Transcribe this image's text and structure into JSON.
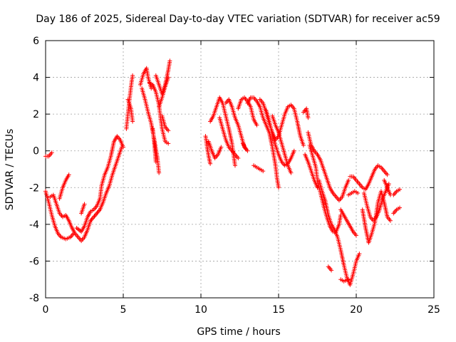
{
  "chart_data": {
    "type": "scatter",
    "title": "Day 186 of 2025, Sidereal Day-to-day VTEC variation (SDTVAR) for receiver ac59",
    "xlabel": "GPS time / hours",
    "ylabel": "SDTVAR / TECUs",
    "xlim": [
      0,
      25
    ],
    "ylim": [
      -8,
      6
    ],
    "xticks": [
      "0",
      "5",
      "10",
      "15",
      "20",
      "25"
    ],
    "yticks": [
      "-8",
      "-6",
      "-4",
      "-2",
      "0",
      "2",
      "4",
      "6"
    ],
    "xtick_values": [
      0,
      5,
      10,
      15,
      20,
      25
    ],
    "ytick_values": [
      -8,
      -6,
      -4,
      -2,
      0,
      2,
      4,
      6
    ],
    "grid": true,
    "marker": "+",
    "marker_color": "#ff0000",
    "tracks": [
      [
        [
          0.0,
          -0.3
        ],
        [
          0.2,
          -0.3
        ],
        [
          0.4,
          -0.1
        ]
      ],
      [
        [
          0.0,
          -2.2
        ],
        [
          0.2,
          -2.8
        ],
        [
          0.4,
          -3.5
        ],
        [
          0.6,
          -4.1
        ],
        [
          0.8,
          -4.5
        ],
        [
          1.0,
          -4.7
        ],
        [
          1.3,
          -4.8
        ],
        [
          1.6,
          -4.7
        ],
        [
          1.8,
          -4.5
        ]
      ],
      [
        [
          0.3,
          -2.5
        ],
        [
          0.5,
          -2.4
        ],
        [
          0.7,
          -2.9
        ],
        [
          0.9,
          -3.4
        ],
        [
          1.1,
          -3.6
        ],
        [
          1.3,
          -3.5
        ],
        [
          1.5,
          -3.8
        ],
        [
          1.7,
          -4.2
        ],
        [
          1.9,
          -4.5
        ],
        [
          2.1,
          -4.7
        ],
        [
          2.3,
          -4.9
        ],
        [
          2.5,
          -4.7
        ],
        [
          2.7,
          -4.3
        ],
        [
          2.9,
          -3.8
        ],
        [
          3.2,
          -3.5
        ],
        [
          3.5,
          -3.2
        ],
        [
          3.7,
          -2.8
        ],
        [
          3.9,
          -2.3
        ],
        [
          4.1,
          -1.9
        ],
        [
          4.3,
          -1.3
        ],
        [
          4.5,
          -0.8
        ],
        [
          4.7,
          -0.3
        ],
        [
          4.9,
          0.2
        ]
      ],
      [
        [
          0.9,
          -2.6
        ],
        [
          1.1,
          -2.0
        ],
        [
          1.3,
          -1.6
        ],
        [
          1.5,
          -1.3
        ]
      ],
      [
        [
          2.0,
          -4.2
        ],
        [
          2.3,
          -4.4
        ],
        [
          2.5,
          -4.1
        ],
        [
          2.7,
          -3.6
        ],
        [
          2.9,
          -3.3
        ],
        [
          3.1,
          -3.2
        ],
        [
          3.3,
          -3.0
        ],
        [
          3.5,
          -2.6
        ],
        [
          3.6,
          -1.9
        ],
        [
          3.8,
          -1.3
        ],
        [
          4.0,
          -0.9
        ],
        [
          4.2,
          -0.3
        ],
        [
          4.4,
          0.5
        ],
        [
          4.6,
          0.8
        ],
        [
          4.8,
          0.6
        ],
        [
          5.0,
          0.2
        ]
      ],
      [
        [
          2.3,
          -3.4
        ],
        [
          2.5,
          -2.9
        ]
      ],
      [
        [
          5.2,
          1.2
        ],
        [
          5.3,
          2.0
        ],
        [
          5.4,
          2.8
        ],
        [
          5.5,
          3.5
        ],
        [
          5.6,
          4.1
        ]
      ],
      [
        [
          5.3,
          2.8
        ],
        [
          5.5,
          2.3
        ],
        [
          5.6,
          1.6
        ]
      ],
      [
        [
          6.1,
          3.6
        ],
        [
          6.3,
          4.2
        ],
        [
          6.5,
          4.5
        ],
        [
          6.6,
          4.0
        ],
        [
          6.8,
          3.4
        ]
      ],
      [
        [
          6.2,
          3.4
        ],
        [
          6.4,
          2.8
        ],
        [
          6.6,
          2.1
        ],
        [
          6.8,
          1.5
        ],
        [
          7.0,
          0.6
        ],
        [
          7.2,
          -0.4
        ],
        [
          7.3,
          -1.2
        ]
      ],
      [
        [
          6.7,
          3.7
        ],
        [
          6.9,
          3.6
        ],
        [
          7.1,
          3.2
        ],
        [
          7.3,
          2.5
        ],
        [
          7.4,
          1.8
        ],
        [
          7.5,
          1.2
        ],
        [
          7.7,
          0.5
        ],
        [
          7.9,
          0.4
        ]
      ],
      [
        [
          6.9,
          1.2
        ],
        [
          7.0,
          0.4
        ],
        [
          7.1,
          -0.6
        ]
      ],
      [
        [
          7.1,
          4.1
        ],
        [
          7.3,
          3.6
        ],
        [
          7.5,
          3.1
        ],
        [
          7.7,
          3.6
        ],
        [
          7.9,
          4.4
        ],
        [
          8.0,
          4.9
        ]
      ],
      [
        [
          7.5,
          1.9
        ],
        [
          7.7,
          1.3
        ],
        [
          7.9,
          1.1
        ]
      ],
      [
        [
          7.3,
          2.4
        ],
        [
          7.5,
          2.9
        ],
        [
          7.7,
          3.5
        ],
        [
          7.9,
          4.0
        ]
      ],
      [
        [
          10.3,
          0.8
        ],
        [
          10.4,
          0.2
        ],
        [
          10.5,
          -0.3
        ],
        [
          10.6,
          -0.7
        ]
      ],
      [
        [
          10.5,
          0.5
        ],
        [
          10.7,
          0.0
        ],
        [
          10.9,
          -0.4
        ],
        [
          11.1,
          -0.2
        ],
        [
          11.3,
          0.2
        ]
      ],
      [
        [
          10.6,
          1.6
        ],
        [
          10.8,
          1.9
        ],
        [
          11.0,
          2.4
        ],
        [
          11.2,
          2.9
        ],
        [
          11.4,
          2.6
        ],
        [
          11.6,
          1.9
        ],
        [
          11.8,
          1.2
        ],
        [
          12.0,
          0.4
        ],
        [
          12.1,
          -0.2
        ],
        [
          12.2,
          -0.8
        ]
      ],
      [
        [
          11.2,
          1.8
        ],
        [
          11.4,
          1.2
        ],
        [
          11.6,
          0.6
        ],
        [
          11.8,
          0.2
        ],
        [
          12.0,
          0.0
        ],
        [
          12.2,
          -0.2
        ],
        [
          12.4,
          -0.4
        ]
      ],
      [
        [
          11.6,
          2.6
        ],
        [
          11.8,
          2.8
        ],
        [
          12.0,
          2.4
        ],
        [
          12.2,
          1.8
        ],
        [
          12.4,
          1.4
        ],
        [
          12.6,
          0.8
        ],
        [
          12.8,
          0.2
        ],
        [
          13.0,
          0.0
        ]
      ],
      [
        [
          12.4,
          2.3
        ],
        [
          12.6,
          2.8
        ],
        [
          12.8,
          2.9
        ],
        [
          13.0,
          2.7
        ],
        [
          13.2,
          2.4
        ],
        [
          13.4,
          1.7
        ],
        [
          13.6,
          1.4
        ]
      ],
      [
        [
          12.7,
          0.4
        ],
        [
          12.9,
          0.1
        ]
      ],
      [
        [
          13.0,
          2.6
        ],
        [
          13.2,
          2.9
        ],
        [
          13.4,
          2.9
        ],
        [
          13.6,
          2.7
        ],
        [
          13.8,
          2.4
        ],
        [
          14.0,
          1.8
        ],
        [
          14.2,
          1.4
        ],
        [
          14.4,
          1.0
        ],
        [
          14.6,
          0.2
        ],
        [
          14.8,
          -0.8
        ],
        [
          14.9,
          -1.5
        ],
        [
          15.0,
          -2.0
        ]
      ],
      [
        [
          13.4,
          -0.8
        ],
        [
          13.6,
          -0.9
        ],
        [
          13.8,
          -1.0
        ],
        [
          14.0,
          -1.1
        ]
      ],
      [
        [
          13.8,
          2.8
        ],
        [
          14.0,
          2.6
        ],
        [
          14.2,
          2.1
        ],
        [
          14.4,
          1.5
        ],
        [
          14.6,
          1.0
        ],
        [
          14.8,
          0.6
        ],
        [
          15.0,
          0.8
        ],
        [
          15.2,
          1.4
        ],
        [
          15.4,
          2.0
        ],
        [
          15.6,
          2.4
        ],
        [
          15.8,
          2.5
        ],
        [
          16.0,
          2.3
        ],
        [
          16.2,
          1.6
        ],
        [
          16.4,
          0.8
        ],
        [
          16.6,
          0.3
        ]
      ],
      [
        [
          14.2,
          2.2
        ],
        [
          14.4,
          1.6
        ],
        [
          14.6,
          0.9
        ],
        [
          14.8,
          0.3
        ],
        [
          15.0,
          -0.2
        ],
        [
          15.2,
          -0.6
        ],
        [
          15.4,
          -0.8
        ],
        [
          15.6,
          -0.7
        ],
        [
          15.8,
          -0.4
        ],
        [
          16.0,
          0.0
        ]
      ],
      [
        [
          14.6,
          1.9
        ],
        [
          14.8,
          1.4
        ],
        [
          15.0,
          1.0
        ],
        [
          15.2,
          0.4
        ],
        [
          15.4,
          -0.2
        ],
        [
          15.6,
          -0.8
        ],
        [
          15.8,
          -1.2
        ]
      ],
      [
        [
          16.6,
          2.1
        ],
        [
          16.8,
          2.3
        ],
        [
          16.9,
          1.8
        ]
      ],
      [
        [
          16.9,
          1.0
        ],
        [
          17.1,
          0.3
        ],
        [
          17.3,
          0.0
        ],
        [
          17.5,
          -0.2
        ],
        [
          17.7,
          -0.5
        ],
        [
          17.9,
          -1.0
        ],
        [
          18.1,
          -1.5
        ],
        [
          18.3,
          -2.0
        ],
        [
          18.5,
          -2.3
        ],
        [
          18.7,
          -2.5
        ],
        [
          18.9,
          -2.7
        ],
        [
          19.1,
          -2.5
        ],
        [
          19.3,
          -2.0
        ],
        [
          19.5,
          -1.6
        ]
      ],
      [
        [
          16.7,
          -0.2
        ],
        [
          16.9,
          -0.6
        ],
        [
          17.1,
          -1.1
        ],
        [
          17.3,
          -1.6
        ],
        [
          17.5,
          -2.0
        ]
      ],
      [
        [
          17.0,
          0.3
        ],
        [
          17.2,
          -0.3
        ],
        [
          17.4,
          -0.9
        ],
        [
          17.5,
          -1.6
        ],
        [
          17.7,
          -2.3
        ],
        [
          17.9,
          -3.0
        ],
        [
          18.1,
          -3.6
        ],
        [
          18.3,
          -4.1
        ],
        [
          18.5,
          -4.4
        ],
        [
          18.7,
          -4.4
        ],
        [
          18.9,
          -4.0
        ],
        [
          19.0,
          -3.5
        ]
      ],
      [
        [
          17.6,
          -1.6
        ],
        [
          17.8,
          -2.2
        ],
        [
          18.0,
          -2.7
        ],
        [
          18.2,
          -3.5
        ],
        [
          18.4,
          -4.0
        ],
        [
          18.6,
          -4.3
        ],
        [
          18.8,
          -4.7
        ],
        [
          19.0,
          -5.4
        ],
        [
          19.2,
          -6.2
        ],
        [
          19.4,
          -6.9
        ],
        [
          19.6,
          -7.3
        ],
        [
          19.8,
          -6.7
        ],
        [
          20.0,
          -6.0
        ],
        [
          20.2,
          -5.6
        ]
      ],
      [
        [
          18.2,
          -6.3
        ],
        [
          18.4,
          -6.5
        ]
      ],
      [
        [
          19.0,
          -3.2
        ],
        [
          19.2,
          -3.5
        ],
        [
          19.4,
          -3.8
        ],
        [
          19.6,
          -4.1
        ],
        [
          19.8,
          -4.4
        ],
        [
          20.0,
          -4.6
        ]
      ],
      [
        [
          19.0,
          -7.0
        ],
        [
          19.2,
          -7.1
        ],
        [
          19.5,
          -7.0
        ]
      ],
      [
        [
          19.6,
          -1.4
        ],
        [
          19.8,
          -1.4
        ],
        [
          20.0,
          -1.6
        ],
        [
          20.2,
          -1.8
        ],
        [
          20.4,
          -2.0
        ],
        [
          20.6,
          -2.1
        ],
        [
          20.8,
          -1.8
        ],
        [
          21.0,
          -1.4
        ],
        [
          21.2,
          -1.0
        ],
        [
          21.4,
          -0.8
        ],
        [
          21.6,
          -0.9
        ],
        [
          21.8,
          -1.1
        ],
        [
          22.0,
          -1.3
        ]
      ],
      [
        [
          19.5,
          -2.4
        ],
        [
          19.7,
          -2.3
        ],
        [
          19.9,
          -2.2
        ],
        [
          20.1,
          -2.3
        ]
      ],
      [
        [
          20.5,
          -2.3
        ],
        [
          20.7,
          -3.0
        ],
        [
          20.9,
          -3.6
        ],
        [
          21.1,
          -3.8
        ],
        [
          21.3,
          -3.6
        ],
        [
          21.5,
          -3.2
        ],
        [
          21.7,
          -2.6
        ],
        [
          21.9,
          -2.2
        ],
        [
          22.1,
          -1.8
        ]
      ],
      [
        [
          20.4,
          -3.2
        ],
        [
          20.6,
          -4.2
        ],
        [
          20.8,
          -5.0
        ],
        [
          21.0,
          -4.5
        ],
        [
          21.2,
          -3.9
        ],
        [
          21.4,
          -2.8
        ],
        [
          21.6,
          -2.2
        ],
        [
          21.8,
          -2.8
        ],
        [
          22.0,
          -3.6
        ],
        [
          22.2,
          -3.8
        ]
      ],
      [
        [
          21.8,
          -1.6
        ],
        [
          22.0,
          -2.0
        ],
        [
          22.2,
          -2.4
        ]
      ],
      [
        [
          22.4,
          -2.4
        ],
        [
          22.6,
          -2.2
        ],
        [
          22.8,
          -2.1
        ]
      ],
      [
        [
          22.4,
          -3.4
        ],
        [
          22.6,
          -3.2
        ],
        [
          22.8,
          -3.1
        ]
      ]
    ]
  }
}
